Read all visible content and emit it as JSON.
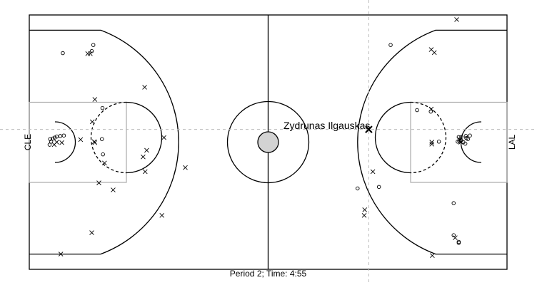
{
  "chart_data": {
    "type": "scatter",
    "title": "",
    "caption": "Period 2; Time: 4:55",
    "xlim": [
      0,
      94
    ],
    "ylim": [
      0,
      50
    ],
    "grid": false,
    "teams": {
      "left": "CLE",
      "right": "LAL"
    },
    "highlight": {
      "label": "Zydrunas Ilgauskas",
      "x": 66.8,
      "y": 27.5,
      "result": "missed"
    },
    "crosshair": {
      "x": 66.8,
      "y": 27.5
    },
    "series": [
      {
        "name": "made",
        "marker": "circle",
        "points": [
          [
            6.6,
            42.5
          ],
          [
            12.6,
            44.1
          ],
          [
            12.3,
            42.9
          ],
          [
            14.4,
            31.7
          ],
          [
            14.3,
            25.6
          ],
          [
            14.5,
            22.6
          ],
          [
            4.1,
            25.6
          ],
          [
            4.6,
            25.7
          ],
          [
            5.0,
            25.9
          ],
          [
            4.3,
            25.1
          ],
          [
            5.4,
            26.1
          ],
          [
            6.8,
            26.3
          ],
          [
            6.1,
            26.2
          ],
          [
            4.0,
            24.5
          ],
          [
            71.1,
            44.1
          ],
          [
            76.3,
            31.3
          ],
          [
            79.0,
            31.0
          ],
          [
            80.6,
            25.1
          ],
          [
            84.3,
            25.1
          ],
          [
            84.6,
            25.3
          ],
          [
            85.0,
            25.3
          ],
          [
            85.4,
            25.0
          ],
          [
            85.0,
            26.0
          ],
          [
            86.0,
            25.8
          ],
          [
            85.9,
            26.2
          ],
          [
            85.8,
            24.7
          ],
          [
            84.5,
            26.0
          ],
          [
            86.3,
            25.6
          ],
          [
            86.7,
            26.3
          ],
          [
            68.8,
            16.2
          ],
          [
            64.6,
            15.9
          ],
          [
            83.5,
            13.0
          ],
          [
            83.5,
            6.7
          ],
          [
            84.5,
            5.2
          ],
          [
            84.5,
            5.4
          ]
        ]
      },
      {
        "name": "missed",
        "marker": "x",
        "points": [
          [
            11.5,
            42.4
          ],
          [
            12.0,
            42.4
          ],
          [
            22.7,
            35.8
          ],
          [
            12.9,
            33.4
          ],
          [
            12.4,
            29.0
          ],
          [
            12.9,
            24.9
          ],
          [
            12.8,
            25.1
          ],
          [
            10.1,
            25.5
          ],
          [
            5.4,
            25.0
          ],
          [
            4.9,
            24.5
          ],
          [
            6.4,
            24.9
          ],
          [
            23.1,
            23.4
          ],
          [
            26.5,
            25.9
          ],
          [
            22.4,
            22.1
          ],
          [
            14.8,
            20.9
          ],
          [
            22.8,
            19.2
          ],
          [
            13.7,
            17.0
          ],
          [
            16.5,
            15.6
          ],
          [
            30.7,
            20.0
          ],
          [
            26.1,
            10.6
          ],
          [
            12.3,
            7.2
          ],
          [
            6.2,
            3.0
          ],
          [
            84.1,
            49.1
          ],
          [
            79.1,
            43.2
          ],
          [
            79.7,
            42.6
          ],
          [
            79.1,
            31.5
          ],
          [
            79.2,
            25.0
          ],
          [
            79.2,
            24.6
          ],
          [
            84.7,
            25.5
          ],
          [
            84.9,
            25.0
          ],
          [
            67.6,
            19.2
          ],
          [
            66.0,
            11.7
          ],
          [
            65.9,
            10.6
          ],
          [
            83.8,
            6.2
          ],
          [
            79.3,
            2.7
          ],
          [
            66.8,
            27.5
          ]
        ]
      }
    ]
  }
}
